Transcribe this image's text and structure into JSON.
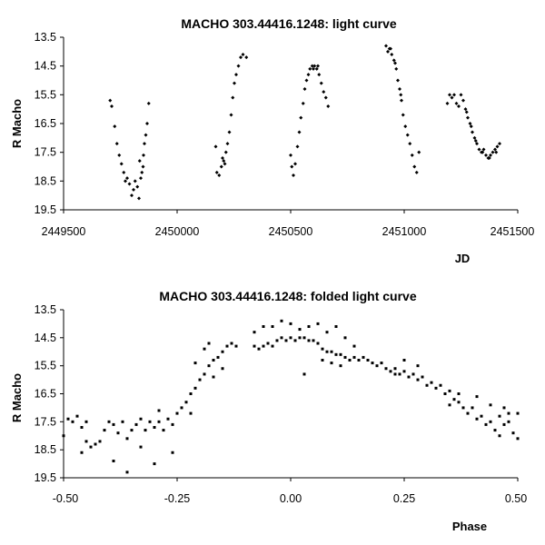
{
  "chart_data": [
    {
      "type": "scatter",
      "title": "MACHO 303.44416.1248: light curve",
      "xlabel": "JD",
      "ylabel": "R Macho",
      "xlim": [
        2449500,
        2451500
      ],
      "ylim": [
        13.5,
        19.5
      ],
      "y_inverted": true,
      "grid": false,
      "marker": "diamond",
      "xticks": [
        "2449500",
        "2450000",
        "2450500",
        "2451000",
        "2451500"
      ],
      "yticks": [
        "13.5",
        "14.5",
        "15.5",
        "16.5",
        "17.5",
        "18.5",
        "19.5"
      ],
      "points": [
        [
          2449705,
          15.7
        ],
        [
          2449712,
          15.9
        ],
        [
          2449725,
          16.6
        ],
        [
          2449735,
          17.2
        ],
        [
          2449745,
          17.6
        ],
        [
          2449755,
          17.9
        ],
        [
          2449765,
          18.2
        ],
        [
          2449772,
          18.5
        ],
        [
          2449780,
          18.4
        ],
        [
          2449790,
          18.6
        ],
        [
          2449800,
          19.0
        ],
        [
          2449808,
          18.8
        ],
        [
          2449815,
          18.5
        ],
        [
          2449825,
          18.7
        ],
        [
          2449832,
          19.1
        ],
        [
          2449840,
          18.4
        ],
        [
          2449850,
          18.0
        ],
        [
          2449856,
          17.2
        ],
        [
          2449862,
          16.9
        ],
        [
          2449868,
          16.5
        ],
        [
          2449875,
          15.8
        ],
        [
          2449845,
          18.2
        ],
        [
          2449835,
          17.8
        ],
        [
          2449852,
          17.6
        ],
        [
          2450170,
          17.3
        ],
        [
          2450175,
          18.2
        ],
        [
          2450185,
          18.3
        ],
        [
          2450195,
          18.0
        ],
        [
          2450205,
          17.8
        ],
        [
          2450215,
          17.5
        ],
        [
          2450222,
          17.2
        ],
        [
          2450230,
          16.8
        ],
        [
          2450238,
          16.2
        ],
        [
          2450245,
          15.6
        ],
        [
          2450252,
          15.1
        ],
        [
          2450260,
          14.8
        ],
        [
          2450270,
          14.5
        ],
        [
          2450280,
          14.2
        ],
        [
          2450290,
          14.1
        ],
        [
          2450305,
          14.2
        ],
        [
          2450210,
          17.9
        ],
        [
          2450200,
          17.7
        ],
        [
          2450500,
          17.6
        ],
        [
          2450505,
          18.0
        ],
        [
          2450512,
          18.3
        ],
        [
          2450520,
          17.9
        ],
        [
          2450530,
          17.3
        ],
        [
          2450538,
          16.8
        ],
        [
          2450545,
          16.3
        ],
        [
          2450555,
          15.8
        ],
        [
          2450562,
          15.3
        ],
        [
          2450570,
          15.0
        ],
        [
          2450578,
          14.8
        ],
        [
          2450585,
          14.6
        ],
        [
          2450595,
          14.5
        ],
        [
          2450605,
          14.5
        ],
        [
          2450615,
          14.6
        ],
        [
          2450625,
          14.8
        ],
        [
          2450635,
          15.1
        ],
        [
          2450645,
          15.4
        ],
        [
          2450655,
          15.6
        ],
        [
          2450665,
          15.9
        ],
        [
          2450600,
          14.6
        ],
        [
          2450620,
          14.5
        ],
        [
          2450920,
          13.8
        ],
        [
          2450928,
          14.0
        ],
        [
          2450935,
          13.9
        ],
        [
          2450945,
          14.1
        ],
        [
          2450955,
          14.3
        ],
        [
          2450965,
          14.6
        ],
        [
          2450972,
          15.0
        ],
        [
          2450980,
          15.3
        ],
        [
          2450988,
          15.7
        ],
        [
          2450995,
          16.2
        ],
        [
          2451005,
          16.6
        ],
        [
          2451015,
          16.9
        ],
        [
          2451025,
          17.2
        ],
        [
          2451035,
          17.6
        ],
        [
          2451045,
          18.0
        ],
        [
          2451055,
          18.2
        ],
        [
          2451065,
          17.5
        ],
        [
          2450940,
          13.9
        ],
        [
          2450960,
          14.4
        ],
        [
          2450985,
          15.5
        ],
        [
          2451190,
          15.8
        ],
        [
          2451200,
          15.5
        ],
        [
          2451210,
          15.6
        ],
        [
          2451220,
          15.5
        ],
        [
          2451230,
          15.8
        ],
        [
          2451240,
          15.9
        ],
        [
          2451250,
          15.5
        ],
        [
          2451260,
          15.7
        ],
        [
          2451270,
          16.0
        ],
        [
          2451280,
          16.3
        ],
        [
          2451290,
          16.5
        ],
        [
          2451300,
          16.8
        ],
        [
          2451310,
          17.0
        ],
        [
          2451320,
          17.2
        ],
        [
          2451330,
          17.4
        ],
        [
          2451340,
          17.5
        ],
        [
          2451350,
          17.4
        ],
        [
          2451360,
          17.6
        ],
        [
          2451370,
          17.7
        ],
        [
          2451380,
          17.6
        ],
        [
          2451390,
          17.5
        ],
        [
          2451400,
          17.4
        ],
        [
          2451410,
          17.3
        ],
        [
          2451420,
          17.2
        ],
        [
          2451275,
          16.1
        ],
        [
          2451295,
          16.6
        ],
        [
          2451315,
          17.1
        ],
        [
          2451345,
          17.5
        ],
        [
          2451375,
          17.7
        ],
        [
          2451405,
          17.5
        ]
      ]
    },
    {
      "type": "scatter",
      "title": "MACHO 303.44416.1248: folded light curve",
      "xlabel": "Phase",
      "ylabel": "R Macho",
      "xlim": [
        -0.5,
        0.5
      ],
      "ylim": [
        13.5,
        19.5
      ],
      "y_inverted": true,
      "grid": false,
      "marker": "square",
      "xticks": [
        "-0.50",
        "-0.25",
        "0.00",
        "0.25",
        "0.50"
      ],
      "yticks": [
        "13.5",
        "14.5",
        "15.5",
        "16.5",
        "17.5",
        "18.5",
        "19.5"
      ],
      "points": [
        [
          -0.5,
          18.0
        ],
        [
          -0.49,
          17.4
        ],
        [
          -0.48,
          17.5
        ],
        [
          -0.47,
          17.3
        ],
        [
          -0.46,
          17.7
        ],
        [
          -0.45,
          17.5
        ],
        [
          -0.45,
          18.2
        ],
        [
          -0.44,
          18.4
        ],
        [
          -0.43,
          18.3
        ],
        [
          -0.42,
          18.2
        ],
        [
          -0.41,
          17.8
        ],
        [
          -0.4,
          17.5
        ],
        [
          -0.39,
          17.6
        ],
        [
          -0.38,
          17.9
        ],
        [
          -0.37,
          17.5
        ],
        [
          -0.36,
          18.1
        ],
        [
          -0.35,
          17.8
        ],
        [
          -0.34,
          17.6
        ],
        [
          -0.33,
          17.4
        ],
        [
          -0.32,
          17.8
        ],
        [
          -0.31,
          17.5
        ],
        [
          -0.3,
          17.7
        ],
        [
          -0.29,
          17.5
        ],
        [
          -0.28,
          17.8
        ],
        [
          -0.27,
          17.4
        ],
        [
          -0.26,
          17.6
        ],
        [
          -0.25,
          17.2
        ],
        [
          -0.24,
          17.0
        ],
        [
          -0.23,
          16.8
        ],
        [
          -0.22,
          16.5
        ],
        [
          -0.21,
          16.3
        ],
        [
          -0.2,
          16.0
        ],
        [
          -0.19,
          15.8
        ],
        [
          -0.18,
          15.5
        ],
        [
          -0.17,
          15.3
        ],
        [
          -0.16,
          15.2
        ],
        [
          -0.15,
          15.0
        ],
        [
          -0.14,
          14.8
        ],
        [
          -0.13,
          14.7
        ],
        [
          -0.12,
          14.8
        ],
        [
          -0.36,
          19.3
        ],
        [
          -0.3,
          19.0
        ],
        [
          -0.39,
          18.9
        ],
        [
          -0.46,
          18.6
        ],
        [
          -0.26,
          18.6
        ],
        [
          -0.33,
          18.4
        ],
        [
          -0.29,
          17.1
        ],
        [
          -0.22,
          17.2
        ],
        [
          -0.21,
          15.4
        ],
        [
          -0.19,
          14.9
        ],
        [
          -0.18,
          14.7
        ],
        [
          -0.15,
          15.6
        ],
        [
          -0.17,
          15.9
        ],
        [
          -0.08,
          14.8
        ],
        [
          -0.07,
          14.9
        ],
        [
          -0.06,
          14.8
        ],
        [
          -0.05,
          14.7
        ],
        [
          -0.04,
          14.8
        ],
        [
          -0.03,
          14.6
        ],
        [
          -0.02,
          14.5
        ],
        [
          -0.01,
          14.6
        ],
        [
          0.0,
          14.5
        ],
        [
          0.01,
          14.6
        ],
        [
          0.02,
          14.5
        ],
        [
          0.03,
          14.5
        ],
        [
          0.04,
          14.6
        ],
        [
          0.05,
          14.6
        ],
        [
          0.06,
          14.7
        ],
        [
          0.07,
          14.9
        ],
        [
          0.08,
          15.0
        ],
        [
          0.09,
          15.0
        ],
        [
          0.1,
          15.1
        ],
        [
          0.11,
          15.1
        ],
        [
          0.12,
          15.2
        ],
        [
          0.13,
          15.3
        ],
        [
          0.14,
          15.2
        ],
        [
          0.15,
          15.3
        ],
        [
          -0.08,
          14.3
        ],
        [
          -0.06,
          14.1
        ],
        [
          -0.04,
          14.1
        ],
        [
          -0.02,
          13.9
        ],
        [
          0.0,
          14.0
        ],
        [
          0.02,
          14.2
        ],
        [
          0.04,
          14.1
        ],
        [
          0.06,
          14.0
        ],
        [
          0.08,
          14.3
        ],
        [
          0.1,
          14.1
        ],
        [
          0.12,
          14.5
        ],
        [
          0.14,
          14.8
        ],
        [
          0.03,
          15.8
        ],
        [
          0.07,
          15.3
        ],
        [
          0.09,
          15.4
        ],
        [
          0.11,
          15.5
        ],
        [
          0.16,
          15.2
        ],
        [
          0.17,
          15.3
        ],
        [
          0.18,
          15.4
        ],
        [
          0.19,
          15.5
        ],
        [
          0.2,
          15.4
        ],
        [
          0.21,
          15.6
        ],
        [
          0.22,
          15.7
        ],
        [
          0.23,
          15.6
        ],
        [
          0.24,
          15.8
        ],
        [
          0.25,
          15.7
        ],
        [
          0.26,
          15.9
        ],
        [
          0.27,
          15.8
        ],
        [
          0.28,
          16.0
        ],
        [
          0.29,
          15.9
        ],
        [
          0.3,
          16.2
        ],
        [
          0.31,
          16.1
        ],
        [
          0.32,
          16.3
        ],
        [
          0.33,
          16.2
        ],
        [
          0.34,
          16.5
        ],
        [
          0.35,
          16.4
        ],
        [
          0.36,
          16.7
        ],
        [
          0.37,
          16.8
        ],
        [
          0.38,
          17.0
        ],
        [
          0.39,
          17.2
        ],
        [
          0.4,
          17.0
        ],
        [
          0.41,
          17.4
        ],
        [
          0.42,
          17.3
        ],
        [
          0.43,
          17.6
        ],
        [
          0.44,
          17.5
        ],
        [
          0.45,
          17.8
        ],
        [
          0.46,
          17.3
        ],
        [
          0.47,
          17.6
        ],
        [
          0.48,
          17.5
        ],
        [
          0.49,
          17.9
        ],
        [
          0.5,
          17.2
        ],
        [
          0.41,
          16.6
        ],
        [
          0.44,
          16.9
        ],
        [
          0.48,
          17.2
        ],
        [
          0.5,
          18.1
        ],
        [
          0.46,
          18.0
        ],
        [
          0.37,
          16.5
        ],
        [
          0.35,
          16.9
        ],
        [
          0.25,
          15.3
        ],
        [
          0.28,
          15.5
        ],
        [
          0.23,
          15.8
        ],
        [
          0.47,
          17.0
        ]
      ]
    }
  ]
}
